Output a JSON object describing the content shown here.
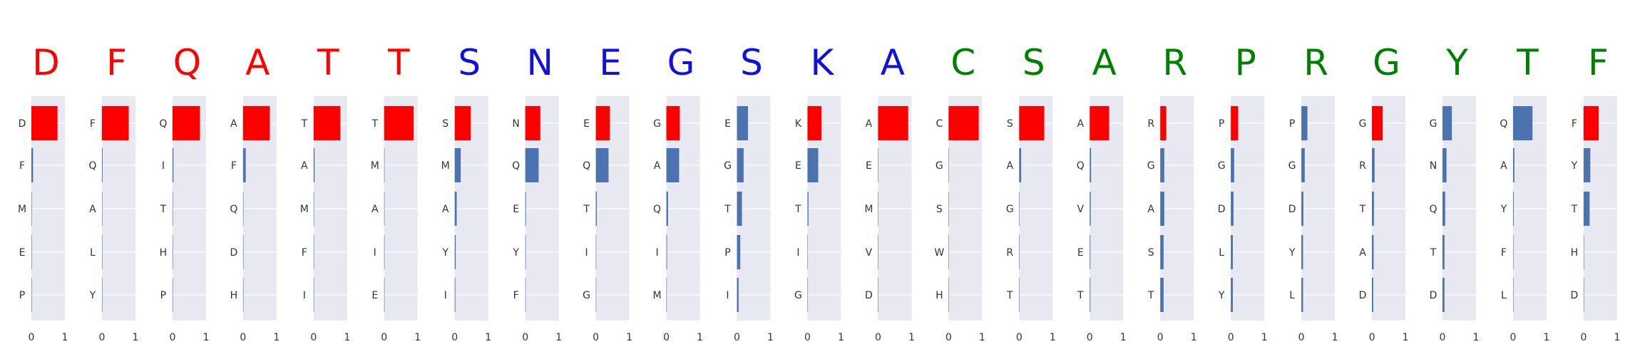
{
  "chart_data": {
    "type": "bar",
    "orientation": "horizontal",
    "xlim": [
      0,
      1
    ],
    "x_ticks": [
      "0",
      "1"
    ],
    "grid": true,
    "colors": {
      "red": "#ff0000",
      "blue": "#1010e0",
      "green": "#008000",
      "bar_top": "#ff0000",
      "bar_other": "#4c72b0",
      "panel_bg": "#e8e8f0"
    },
    "panels": [
      {
        "letter": "D",
        "color": "red",
        "categories": [
          "D",
          "F",
          "M",
          "E",
          "P"
        ],
        "values": [
          0.78,
          0.05,
          0.01,
          0.005,
          0.003
        ]
      },
      {
        "letter": "F",
        "color": "red",
        "categories": [
          "F",
          "Q",
          "A",
          "L",
          "Y"
        ],
        "values": [
          0.8,
          0.02,
          0.005,
          0.003,
          0.002
        ]
      },
      {
        "letter": "Q",
        "color": "red",
        "categories": [
          "Q",
          "I",
          "T",
          "H",
          "P"
        ],
        "values": [
          0.82,
          0.03,
          0.005,
          0.003,
          0.002
        ]
      },
      {
        "letter": "A",
        "color": "red",
        "categories": [
          "A",
          "F",
          "Q",
          "D",
          "H"
        ],
        "values": [
          0.8,
          0.08,
          0.01,
          0.005,
          0.003
        ]
      },
      {
        "letter": "T",
        "color": "red",
        "categories": [
          "T",
          "A",
          "M",
          "F",
          "I"
        ],
        "values": [
          0.8,
          0.03,
          0.005,
          0.003,
          0.002
        ]
      },
      {
        "letter": "T",
        "color": "red",
        "categories": [
          "T",
          "M",
          "A",
          "I",
          "E"
        ],
        "values": [
          0.88,
          0.005,
          0.003,
          0.002,
          0.002
        ]
      },
      {
        "letter": "S",
        "color": "blue",
        "categories": [
          "S",
          "M",
          "A",
          "Y",
          "I"
        ],
        "values": [
          0.48,
          0.18,
          0.06,
          0.03,
          0.02
        ]
      },
      {
        "letter": "N",
        "color": "blue",
        "categories": [
          "N",
          "Q",
          "E",
          "Y",
          "F"
        ],
        "values": [
          0.45,
          0.4,
          0.02,
          0.015,
          0.01
        ]
      },
      {
        "letter": "E",
        "color": "blue",
        "categories": [
          "E",
          "Q",
          "T",
          "I",
          "G"
        ],
        "values": [
          0.42,
          0.38,
          0.03,
          0.01,
          0.005
        ]
      },
      {
        "letter": "G",
        "color": "blue",
        "categories": [
          "G",
          "A",
          "Q",
          "I",
          "M"
        ],
        "values": [
          0.4,
          0.38,
          0.05,
          0.02,
          0.01
        ]
      },
      {
        "letter": "S",
        "color": "blue",
        "categories": [
          "E",
          "G",
          "T",
          "P",
          "I"
        ],
        "values": [
          0.33,
          0.2,
          0.15,
          0.1,
          0.05
        ]
      },
      {
        "letter": "K",
        "color": "blue",
        "categories": [
          "K",
          "E",
          "T",
          "I",
          "G"
        ],
        "values": [
          0.42,
          0.32,
          0.03,
          0.01,
          0.005
        ]
      },
      {
        "letter": "A",
        "color": "blue",
        "categories": [
          "A",
          "E",
          "M",
          "V",
          "D"
        ],
        "values": [
          0.9,
          0.005,
          0.003,
          0.002,
          0.002
        ]
      },
      {
        "letter": "C",
        "color": "green",
        "categories": [
          "C",
          "G",
          "S",
          "W",
          "H"
        ],
        "values": [
          0.9,
          0.005,
          0.003,
          0.002,
          0.002
        ]
      },
      {
        "letter": "S",
        "color": "green",
        "categories": [
          "S",
          "A",
          "G",
          "R",
          "T"
        ],
        "values": [
          0.75,
          0.06,
          0.01,
          0.005,
          0.003
        ]
      },
      {
        "letter": "A",
        "color": "green",
        "categories": [
          "A",
          "Q",
          "V",
          "E",
          "T"
        ],
        "values": [
          0.58,
          0.04,
          0.03,
          0.02,
          0.02
        ]
      },
      {
        "letter": "R",
        "color": "green",
        "categories": [
          "R",
          "G",
          "A",
          "S",
          "T"
        ],
        "values": [
          0.18,
          0.12,
          0.12,
          0.1,
          0.1
        ]
      },
      {
        "letter": "P",
        "color": "green",
        "categories": [
          "P",
          "G",
          "D",
          "L",
          "Y"
        ],
        "values": [
          0.22,
          0.1,
          0.08,
          0.06,
          0.06
        ]
      },
      {
        "letter": "R",
        "color": "green",
        "categories": [
          "P",
          "G",
          "D",
          "Y",
          "L"
        ],
        "values": [
          0.18,
          0.1,
          0.06,
          0.05,
          0.05
        ]
      },
      {
        "letter": "G",
        "color": "green",
        "categories": [
          "G",
          "R",
          "T",
          "A",
          "D"
        ],
        "values": [
          0.32,
          0.08,
          0.06,
          0.05,
          0.04
        ]
      },
      {
        "letter": "Y",
        "color": "green",
        "categories": [
          "G",
          "N",
          "Q",
          "T",
          "D"
        ],
        "values": [
          0.28,
          0.12,
          0.08,
          0.06,
          0.06
        ]
      },
      {
        "letter": "T",
        "color": "green",
        "categories": [
          "Q",
          "A",
          "Y",
          "F",
          "L"
        ],
        "values": [
          0.58,
          0.04,
          0.02,
          0.01,
          0.005
        ]
      },
      {
        "letter": "F",
        "color": "green",
        "categories": [
          "F",
          "Y",
          "T",
          "H",
          "D"
        ],
        "values": [
          0.45,
          0.2,
          0.18,
          0.01,
          0.005
        ]
      }
    ]
  }
}
